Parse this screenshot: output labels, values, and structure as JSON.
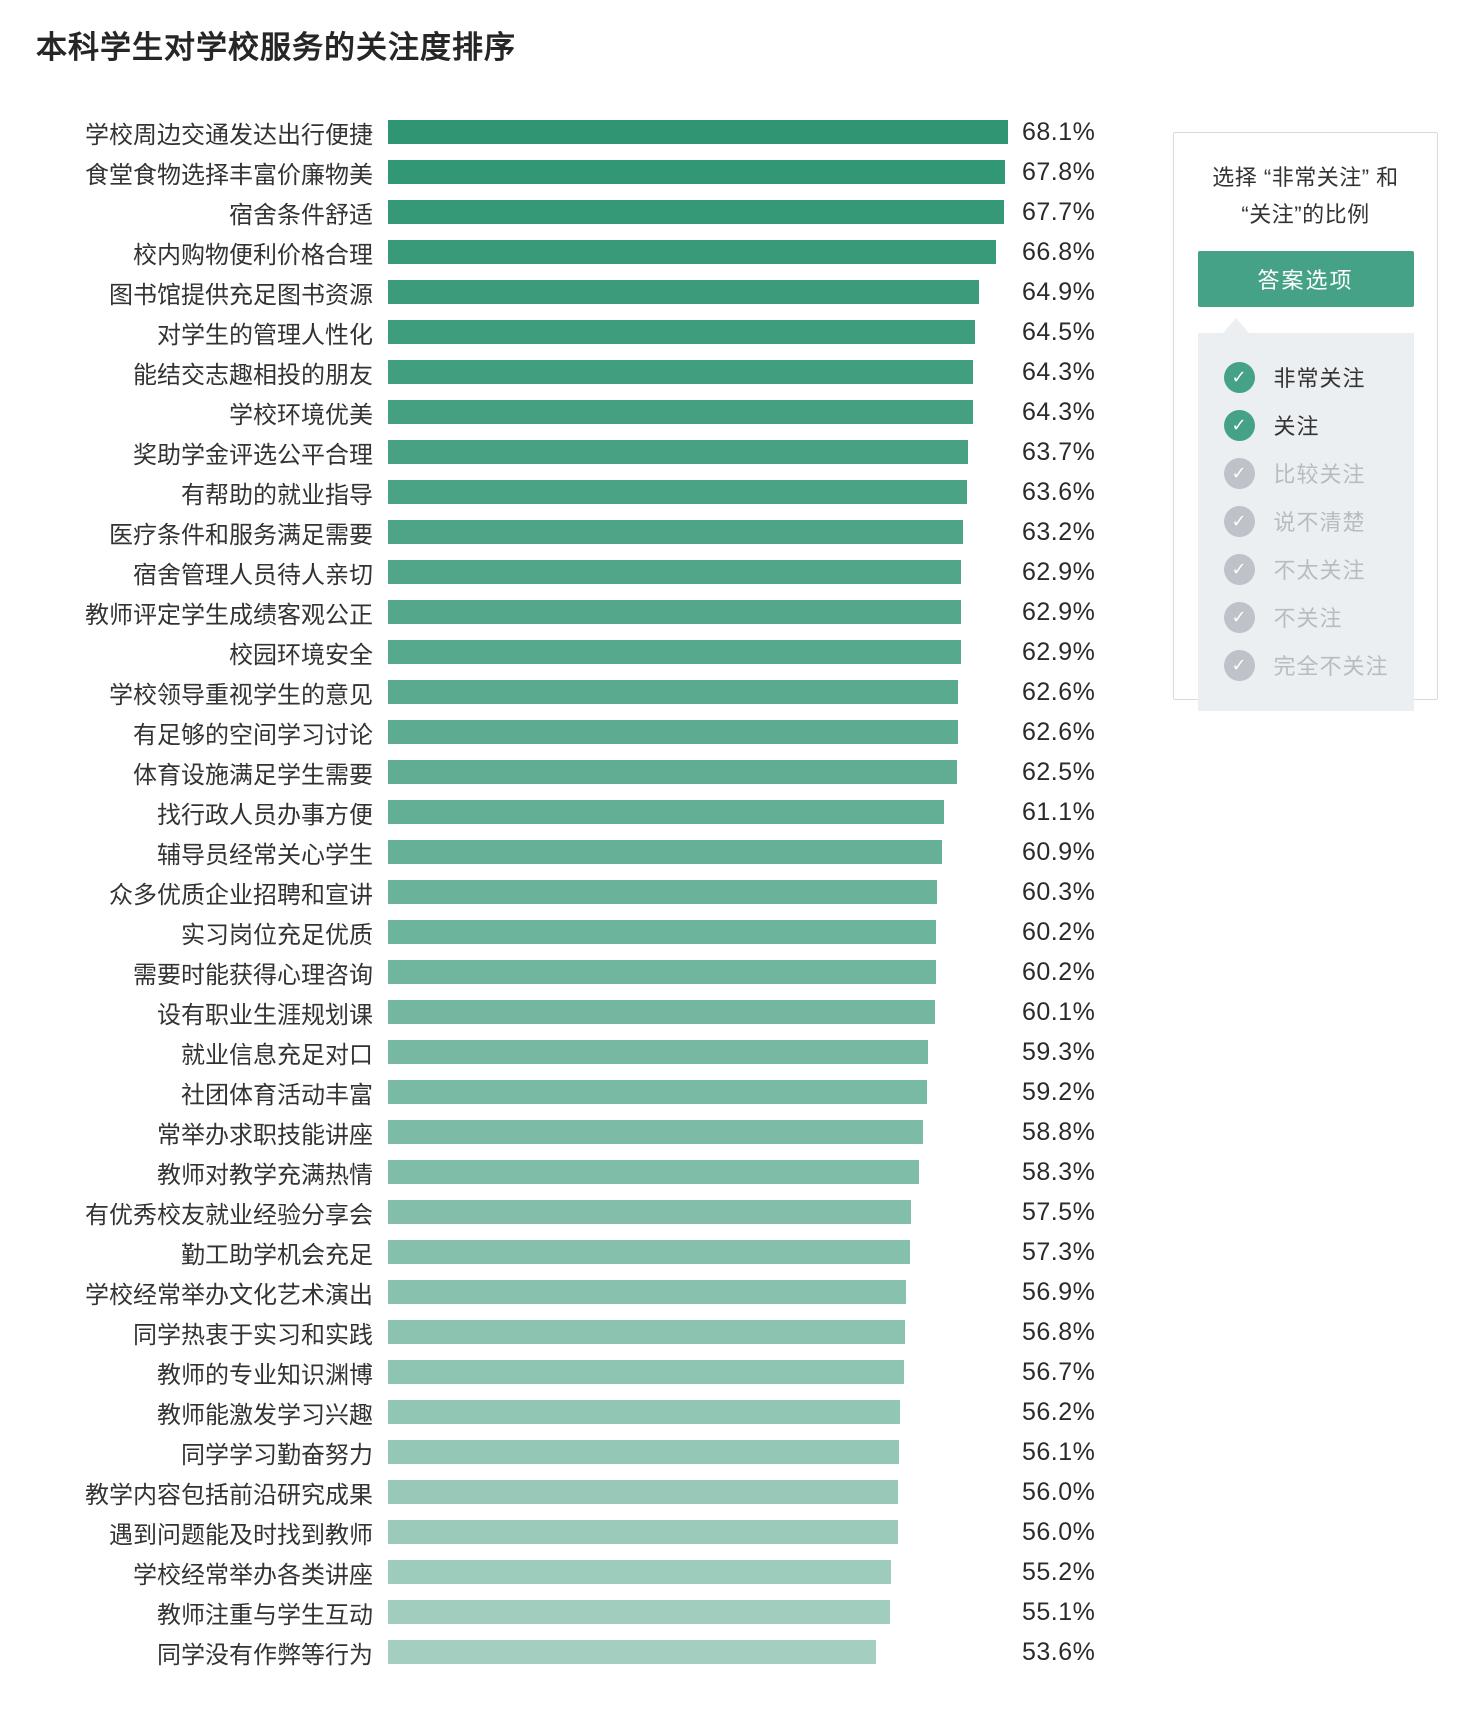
{
  "title": "本科学生对学校服务的关注度排序",
  "chart_data": {
    "type": "bar",
    "orientation": "horizontal",
    "title": "本科学生对学校服务的关注度排序",
    "xlabel": "",
    "ylabel": "",
    "xlim": [
      0,
      68.1
    ],
    "grid": false,
    "value_suffix": "%",
    "bar_color_top": "#2f9573",
    "bar_color_bottom": "#a4cfc0",
    "categories": [
      "学校周边交通发达出行便捷",
      "食堂食物选择丰富价廉物美",
      "宿舍条件舒适",
      "校内购物便利价格合理",
      "图书馆提供充足图书资源",
      "对学生的管理人性化",
      "能结交志趣相投的朋友",
      "学校环境优美",
      "奖助学金评选公平合理",
      "有帮助的就业指导",
      "医疗条件和服务满足需要",
      "宿舍管理人员待人亲切",
      "教师评定学生成绩客观公正",
      "校园环境安全",
      "学校领导重视学生的意见",
      "有足够的空间学习讨论",
      "体育设施满足学生需要",
      "找行政人员办事方便",
      "辅导员经常关心学生",
      "众多优质企业招聘和宣讲",
      "实习岗位充足优质",
      "需要时能获得心理咨询",
      "设有职业生涯规划课",
      "就业信息充足对口",
      "社团体育活动丰富",
      "常举办求职技能讲座",
      "教师对教学充满热情",
      "有优秀校友就业经验分享会",
      "勤工助学机会充足",
      "学校经常举办文化艺术演出",
      "同学热衷于实习和实践",
      "教师的专业知识渊博",
      "教师能激发学习兴趣",
      "同学学习勤奋努力",
      "教学内容包括前沿研究成果",
      "遇到问题能及时找到教师",
      "学校经常举办各类讲座",
      "教师注重与学生互动",
      "同学没有作弊等行为"
    ],
    "values": [
      68.1,
      67.8,
      67.7,
      66.8,
      64.9,
      64.5,
      64.3,
      64.3,
      63.7,
      63.6,
      63.2,
      62.9,
      62.9,
      62.9,
      62.6,
      62.6,
      62.5,
      61.1,
      60.9,
      60.3,
      60.2,
      60.2,
      60.1,
      59.3,
      59.2,
      58.8,
      58.3,
      57.5,
      57.3,
      56.9,
      56.8,
      56.7,
      56.2,
      56.1,
      56.0,
      56.0,
      55.2,
      55.1,
      53.6
    ]
  },
  "legend": {
    "title_lines": [
      "选择 “非常关注” 和",
      "“关注”的比例"
    ],
    "button_label": "答案选项",
    "options": [
      {
        "label": "非常关注",
        "selected": true
      },
      {
        "label": "关注",
        "selected": true
      },
      {
        "label": "比较关注",
        "selected": false
      },
      {
        "label": "说不清楚",
        "selected": false
      },
      {
        "label": "不太关注",
        "selected": false
      },
      {
        "label": "不关注",
        "selected": false
      },
      {
        "label": "完全不关注",
        "selected": false
      }
    ],
    "colors": {
      "active_check": "#46a287",
      "inactive_check": "#bdc3c8",
      "active_text": "#333333",
      "inactive_text": "#b6bcc1",
      "panel_bg": "#eceff1",
      "button_bg": "#46a287"
    },
    "check_glyph": "✓"
  }
}
